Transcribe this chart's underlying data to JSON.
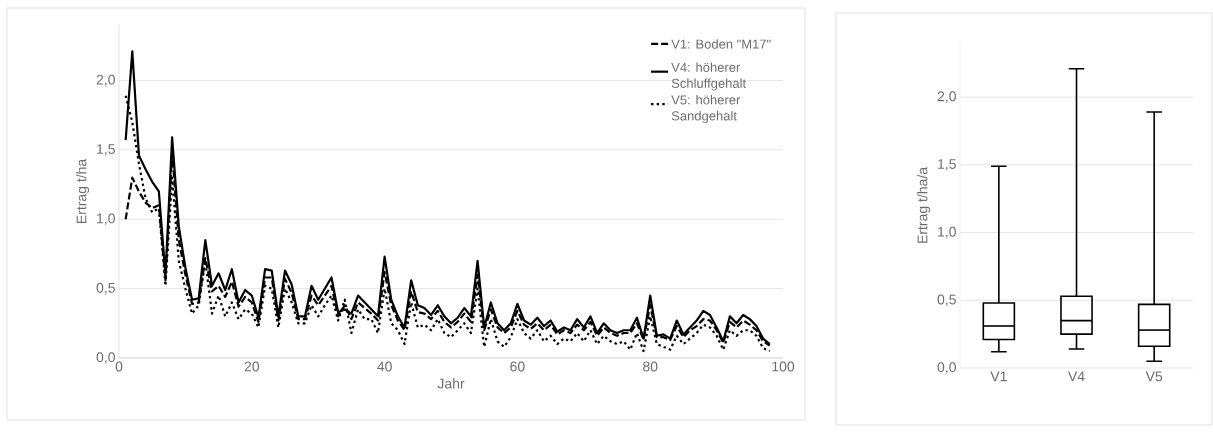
{
  "chart_data": [
    {
      "type": "line",
      "xlabel": "Jahr",
      "ylabel": "Ertrag t/ha",
      "legend": "top right",
      "grid": "y",
      "marker": "none",
      "x": [
        1,
        2,
        3,
        4,
        5,
        6,
        7,
        8,
        9,
        10,
        11,
        12,
        13,
        14,
        15,
        16,
        17,
        18,
        19,
        20,
        21,
        22,
        23,
        24,
        25,
        26,
        27,
        28,
        29,
        30,
        31,
        32,
        33,
        34,
        35,
        36,
        37,
        38,
        39,
        40,
        41,
        42,
        43,
        44,
        45,
        46,
        47,
        48,
        49,
        50,
        51,
        52,
        53,
        54,
        55,
        56,
        57,
        58,
        59,
        60,
        61,
        62,
        63,
        64,
        65,
        66,
        67,
        68,
        69,
        70,
        71,
        72,
        73,
        74,
        75,
        76,
        77,
        78,
        79,
        80,
        81,
        82,
        83,
        84,
        85,
        86,
        87,
        88,
        89,
        90,
        91,
        92,
        93,
        94,
        95,
        96,
        97,
        98
      ],
      "xlim": [
        0,
        100
      ],
      "xticks": [
        0,
        20,
        40,
        60,
        80,
        100
      ],
      "ylim": [
        0,
        2.4
      ],
      "yticks": [
        {
          "value": 0,
          "label": "0,0"
        },
        {
          "value": 0.5,
          "label": "0,5"
        },
        {
          "value": 1.0,
          "label": "1,0"
        },
        {
          "value": 1.5,
          "label": "1,5"
        },
        {
          "value": 2.0,
          "label": "2,0"
        }
      ],
      "series": [
        {
          "name": "V1: Boden \"M17\"",
          "color": "#000000",
          "line_style": "dashed",
          "values": [
            1.0,
            1.3,
            1.2,
            1.12,
            1.08,
            1.1,
            0.56,
            1.49,
            0.85,
            0.6,
            0.39,
            0.4,
            0.72,
            0.48,
            0.52,
            0.44,
            0.55,
            0.37,
            0.44,
            0.4,
            0.26,
            0.58,
            0.58,
            0.27,
            0.57,
            0.47,
            0.28,
            0.28,
            0.45,
            0.38,
            0.45,
            0.52,
            0.3,
            0.38,
            0.28,
            0.4,
            0.36,
            0.32,
            0.27,
            0.62,
            0.38,
            0.27,
            0.2,
            0.48,
            0.33,
            0.32,
            0.28,
            0.34,
            0.26,
            0.22,
            0.26,
            0.32,
            0.26,
            0.6,
            0.2,
            0.35,
            0.22,
            0.18,
            0.22,
            0.34,
            0.24,
            0.21,
            0.25,
            0.2,
            0.24,
            0.17,
            0.2,
            0.18,
            0.24,
            0.2,
            0.26,
            0.16,
            0.22,
            0.18,
            0.16,
            0.18,
            0.18,
            0.25,
            0.13,
            0.38,
            0.15,
            0.15,
            0.13,
            0.23,
            0.15,
            0.2,
            0.23,
            0.28,
            0.27,
            0.2,
            0.11,
            0.26,
            0.22,
            0.27,
            0.24,
            0.2,
            0.12,
            0.09
          ]
        },
        {
          "name": "V4: höherer Schluffgehalt",
          "color": "#000000",
          "line_style": "solid",
          "values": [
            1.57,
            2.21,
            1.46,
            1.36,
            1.27,
            1.2,
            0.6,
            1.59,
            0.95,
            0.65,
            0.42,
            0.43,
            0.85,
            0.52,
            0.61,
            0.49,
            0.64,
            0.4,
            0.49,
            0.45,
            0.29,
            0.64,
            0.63,
            0.3,
            0.63,
            0.53,
            0.3,
            0.3,
            0.52,
            0.42,
            0.5,
            0.58,
            0.33,
            0.35,
            0.32,
            0.45,
            0.4,
            0.35,
            0.3,
            0.73,
            0.42,
            0.3,
            0.22,
            0.56,
            0.38,
            0.36,
            0.31,
            0.38,
            0.3,
            0.25,
            0.29,
            0.36,
            0.3,
            0.7,
            0.22,
            0.4,
            0.25,
            0.2,
            0.25,
            0.39,
            0.27,
            0.24,
            0.29,
            0.23,
            0.27,
            0.19,
            0.22,
            0.2,
            0.28,
            0.22,
            0.3,
            0.18,
            0.25,
            0.2,
            0.18,
            0.2,
            0.2,
            0.29,
            0.14,
            0.45,
            0.16,
            0.17,
            0.14,
            0.27,
            0.17,
            0.22,
            0.27,
            0.34,
            0.31,
            0.22,
            0.12,
            0.3,
            0.25,
            0.31,
            0.28,
            0.23,
            0.14,
            0.1
          ]
        },
        {
          "name": "V5: höherer Sandgehalt",
          "color": "#000000",
          "line_style": "dotted",
          "values": [
            1.89,
            1.7,
            1.4,
            1.15,
            1.05,
            1.08,
            0.52,
            1.3,
            0.7,
            0.5,
            0.32,
            0.38,
            0.7,
            0.32,
            0.45,
            0.3,
            0.4,
            0.28,
            0.35,
            0.32,
            0.22,
            0.52,
            0.5,
            0.22,
            0.5,
            0.4,
            0.25,
            0.25,
            0.38,
            0.3,
            0.38,
            0.45,
            0.27,
            0.42,
            0.18,
            0.35,
            0.28,
            0.28,
            0.18,
            0.5,
            0.25,
            0.2,
            0.1,
            0.4,
            0.22,
            0.24,
            0.2,
            0.28,
            0.18,
            0.15,
            0.2,
            0.25,
            0.18,
            0.5,
            0.08,
            0.28,
            0.12,
            0.08,
            0.15,
            0.28,
            0.18,
            0.14,
            0.2,
            0.12,
            0.16,
            0.1,
            0.14,
            0.12,
            0.18,
            0.12,
            0.2,
            0.1,
            0.16,
            0.12,
            0.1,
            0.12,
            0.06,
            0.18,
            0.05,
            0.3,
            0.1,
            0.08,
            0.06,
            0.16,
            0.1,
            0.14,
            0.18,
            0.24,
            0.22,
            0.16,
            0.06,
            0.2,
            0.16,
            0.2,
            0.2,
            0.16,
            0.07,
            0.05
          ]
        }
      ]
    },
    {
      "type": "box",
      "ylabel": "Ertrag t/ha/a",
      "grid": "y",
      "color": "#000000",
      "categories": [
        "V1",
        "V4",
        "V5"
      ],
      "ylim": [
        0,
        2.4
      ],
      "yticks": [
        {
          "value": 0,
          "label": "0,0"
        },
        {
          "value": 0.5,
          "label": "0,5"
        },
        {
          "value": 1.0,
          "label": "1,0"
        },
        {
          "value": 1.5,
          "label": "1,5"
        },
        {
          "value": 2.0,
          "label": "2,0"
        }
      ],
      "boxes": [
        {
          "low": 0.12,
          "q1": 0.21,
          "median": 0.31,
          "q3": 0.48,
          "high": 1.49
        },
        {
          "low": 0.14,
          "q1": 0.25,
          "median": 0.35,
          "q3": 0.53,
          "high": 2.21
        },
        {
          "low": 0.05,
          "q1": 0.16,
          "median": 0.28,
          "q3": 0.47,
          "high": 1.89
        }
      ]
    }
  ]
}
